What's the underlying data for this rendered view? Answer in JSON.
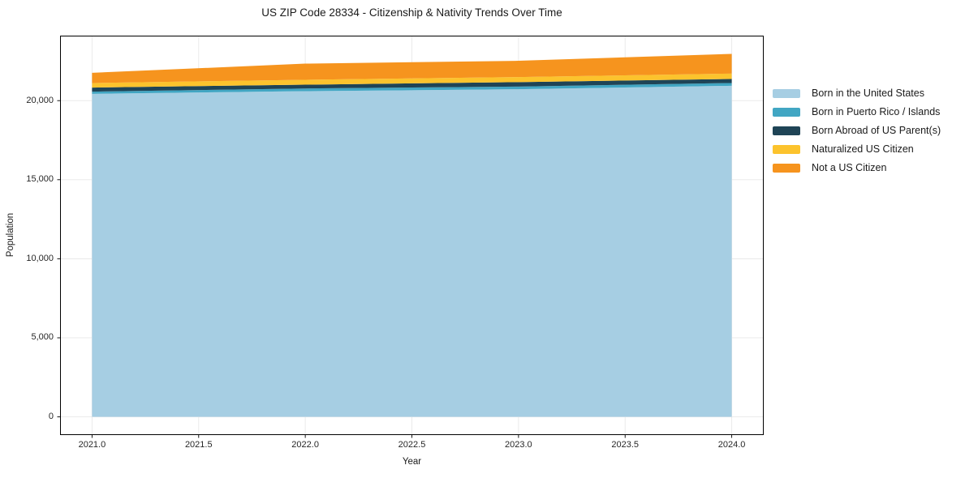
{
  "chart_data": {
    "type": "area",
    "stacked": true,
    "title": "US ZIP Code 28334 - Citizenship & Nativity Trends Over Time",
    "xlabel": "Year",
    "ylabel": "Population",
    "x": [
      2021,
      2022,
      2023,
      2024
    ],
    "series": [
      {
        "name": "Born in the United States",
        "color": "#A6CEE3",
        "values": [
          20430,
          20600,
          20720,
          20940
        ]
      },
      {
        "name": "Born in Puerto Rico / Islands",
        "color": "#41A6C3",
        "values": [
          140,
          170,
          170,
          175
        ]
      },
      {
        "name": "Born Abroad of US Parent(s)",
        "color": "#1F4456",
        "values": [
          255,
          240,
          280,
          255
        ]
      },
      {
        "name": "Naturalized US Citizen",
        "color": "#FCC32D",
        "values": [
          290,
          310,
          320,
          340
        ]
      },
      {
        "name": "Not a US Citizen",
        "color": "#F6941E",
        "values": [
          645,
          1020,
          1030,
          1250
        ]
      }
    ],
    "xlim": [
      2020.85,
      2024.15
    ],
    "ylim": [
      -1150,
      24110
    ],
    "x_ticks": [
      2021.0,
      2021.5,
      2022.0,
      2022.5,
      2023.0,
      2023.5,
      2024.0
    ],
    "x_tick_labels": [
      "2021.0",
      "2021.5",
      "2022.0",
      "2022.5",
      "2023.0",
      "2023.5",
      "2024.0"
    ],
    "y_ticks": [
      0,
      5000,
      10000,
      15000,
      20000
    ],
    "y_tick_labels": [
      "0",
      "5,000",
      "10,000",
      "15,000",
      "20,000"
    ],
    "grid": true,
    "legend_position": "right-outside"
  },
  "colors": {
    "background": "#FFFFFF",
    "grid": "#E8E8E8",
    "spine": "#000000",
    "tick_label": "#262626",
    "title": "#1A1A1A"
  }
}
